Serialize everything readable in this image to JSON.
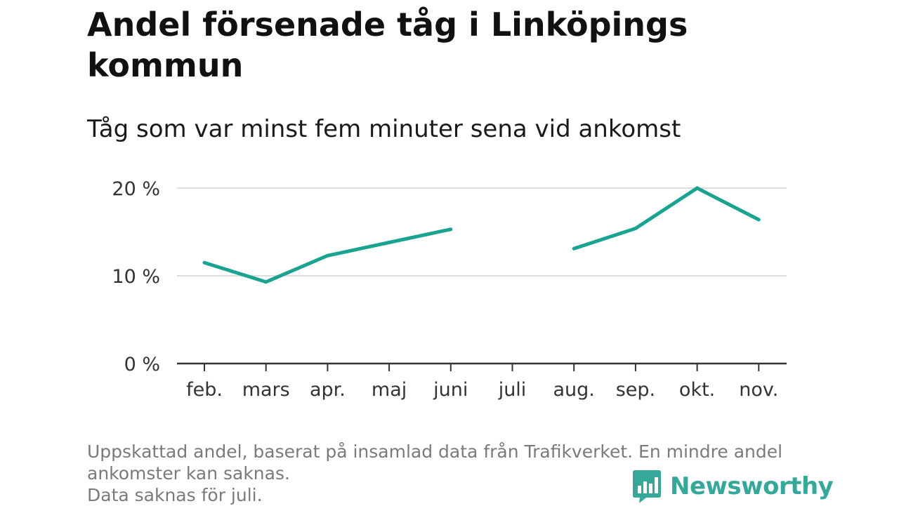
{
  "title": "Andel försenade tåg i Linköpings kommun",
  "subtitle": "Tåg som var minst fem minuter sena vid ankomst",
  "footnote": {
    "line1": "Uppskattad andel, baserat på insamlad data från Trafikverket. En mindre andel",
    "line2": "ankomster kan saknas.",
    "line3": "Data saknas för juli."
  },
  "brand": {
    "name": "Newsworthy",
    "icon": "newsworthy-bar-chart-logo-icon",
    "color": "#36a89a"
  },
  "chart_data": {
    "type": "line",
    "categories": [
      "feb.",
      "mars",
      "apr.",
      "maj",
      "juni",
      "juli",
      "aug.",
      "sep.",
      "okt.",
      "nov."
    ],
    "series": [
      {
        "values": [
          11.5,
          9.3,
          12.3,
          13.8,
          15.3,
          null,
          13.1,
          15.4,
          20.0,
          16.4
        ],
        "color": "#1aa391"
      }
    ],
    "yticks": [
      {
        "value": 0,
        "label": "0 %"
      },
      {
        "value": 10,
        "label": "10 %"
      },
      {
        "value": 20,
        "label": "20 %"
      }
    ],
    "ylim": [
      0,
      20
    ],
    "grid": true,
    "legend": false
  }
}
